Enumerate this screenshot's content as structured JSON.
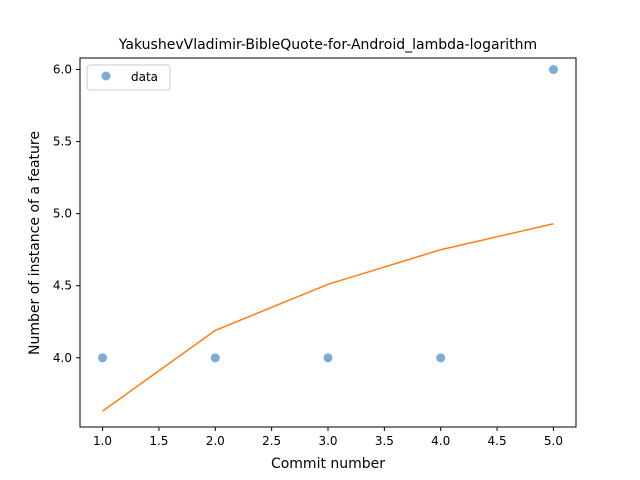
{
  "chart_data": {
    "type": "scatter",
    "title": "YakushevVladimir-BibleQuote-for-Android_lambda-logarithm",
    "xlabel": "Commit number",
    "ylabel": "Number of instance of a feature",
    "xlim": [
      0.8,
      5.2
    ],
    "ylim": [
      3.52,
      6.08
    ],
    "xticks": [
      1.0,
      1.5,
      2.0,
      2.5,
      3.0,
      3.5,
      4.0,
      4.5,
      5.0
    ],
    "xtick_labels": [
      "1.0",
      "1.5",
      "2.0",
      "2.5",
      "3.0",
      "3.5",
      "4.0",
      "4.5",
      "5.0"
    ],
    "yticks": [
      4.0,
      4.5,
      5.0,
      5.5,
      6.0
    ],
    "ytick_labels": [
      "4.0",
      "4.5",
      "5.0",
      "5.5",
      "6.0"
    ],
    "grid": false,
    "legend_position": "top-left",
    "series": [
      {
        "name": "data",
        "kind": "scatter",
        "color": "#1f77b4",
        "x": [
          1,
          2,
          3,
          4,
          5
        ],
        "y": [
          4,
          4,
          4,
          4,
          6
        ]
      },
      {
        "kind": "line",
        "color": "#ff7f0e",
        "x": [
          1,
          2,
          3,
          4,
          5
        ],
        "y": [
          3.63,
          4.19,
          4.51,
          4.75,
          4.93
        ]
      }
    ]
  }
}
